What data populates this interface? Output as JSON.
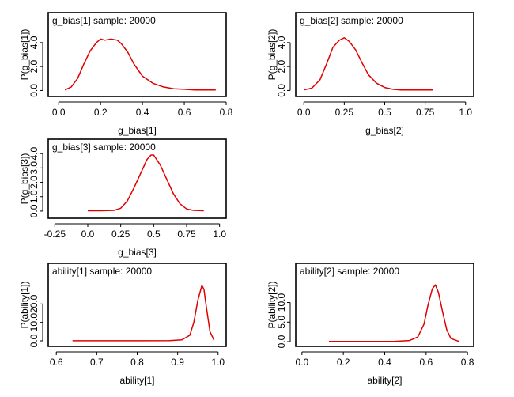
{
  "chart_data": [
    {
      "type": "line",
      "title": "g_bias[1] sample: 20000",
      "xlabel": "g_bias[1]",
      "ylabel": "P(g_bias[1])",
      "xlim": [
        -0.05,
        0.8
      ],
      "ylim": [
        -0.5,
        6.5
      ],
      "xticks": [
        0.0,
        0.2,
        0.4,
        0.6,
        0.8
      ],
      "xtick_labels": [
        "0.0",
        "0.2",
        "0.4",
        "0.6",
        "0.8"
      ],
      "yticks": [
        0,
        2,
        4
      ],
      "ytick_labels": [
        "0.0",
        "2.0",
        "4.0"
      ],
      "series": [
        {
          "x": [
            0.03,
            0.06,
            0.09,
            0.12,
            0.15,
            0.18,
            0.2,
            0.22,
            0.25,
            0.28,
            0.3,
            0.33,
            0.36,
            0.4,
            0.45,
            0.5,
            0.55,
            0.6,
            0.65,
            0.7,
            0.75
          ],
          "y": [
            0.05,
            0.3,
            1.0,
            2.2,
            3.3,
            4.0,
            4.3,
            4.2,
            4.3,
            4.2,
            3.9,
            3.2,
            2.2,
            1.2,
            0.6,
            0.3,
            0.15,
            0.1,
            0.05,
            0.05,
            0.05
          ]
        }
      ]
    },
    {
      "type": "line",
      "title": "g_bias[2] sample: 20000",
      "xlabel": "g_bias[2]",
      "ylabel": "P(g_bias[2])",
      "xlim": [
        -0.05,
        1.05
      ],
      "ylim": [
        -0.5,
        6.5
      ],
      "xticks": [
        0.0,
        0.25,
        0.5,
        0.75,
        1.0
      ],
      "xtick_labels": [
        "0.0",
        "0.25",
        "0.5",
        "0.75",
        "1.0"
      ],
      "yticks": [
        0,
        2,
        4
      ],
      "ytick_labels": [
        "0.0",
        "2.0",
        "4.0"
      ],
      "series": [
        {
          "x": [
            0.0,
            0.05,
            0.1,
            0.14,
            0.18,
            0.22,
            0.25,
            0.28,
            0.32,
            0.36,
            0.4,
            0.45,
            0.5,
            0.55,
            0.6,
            0.7,
            0.8
          ],
          "y": [
            0.05,
            0.2,
            0.9,
            2.2,
            3.6,
            4.2,
            4.4,
            4.1,
            3.4,
            2.3,
            1.3,
            0.6,
            0.25,
            0.1,
            0.05,
            0.05,
            0.05
          ]
        }
      ]
    },
    {
      "type": "line",
      "title": "g_bias[3] sample: 20000",
      "xlabel": "g_bias[3]",
      "ylabel": "P(g_bias[3])",
      "xlim": [
        -0.3,
        1.05
      ],
      "ylim": [
        -0.5,
        5.0
      ],
      "xticks": [
        -0.25,
        0.0,
        0.25,
        0.5,
        0.75,
        1.0
      ],
      "xtick_labels": [
        "-0.25",
        "0.0",
        "0.25",
        "0.5",
        "0.75",
        "1.0"
      ],
      "yticks": [
        0,
        1,
        2,
        3,
        4
      ],
      "ytick_labels": [
        "0.0",
        "1.0",
        "2.0",
        "3.0",
        "4.0"
      ],
      "series": [
        {
          "x": [
            0.0,
            0.1,
            0.2,
            0.25,
            0.3,
            0.35,
            0.4,
            0.45,
            0.48,
            0.5,
            0.55,
            0.6,
            0.65,
            0.7,
            0.75,
            0.8,
            0.88
          ],
          "y": [
            0.02,
            0.02,
            0.05,
            0.2,
            0.7,
            1.6,
            2.6,
            3.6,
            3.9,
            3.9,
            3.2,
            2.2,
            1.2,
            0.5,
            0.15,
            0.05,
            0.02
          ]
        }
      ]
    },
    {
      "type": "line",
      "title": "ability[1] sample: 20000",
      "xlabel": "ability[1]",
      "ylabel": "P(ability[1])",
      "xlim": [
        0.58,
        1.02
      ],
      "ylim": [
        -3,
        42
      ],
      "xticks": [
        0.6,
        0.7,
        0.8,
        0.9,
        1.0
      ],
      "xtick_labels": [
        "0.6",
        "0.7",
        "0.8",
        "0.9",
        "1.0"
      ],
      "yticks": [
        0,
        10,
        20
      ],
      "ytick_labels": [
        "0.0",
        "10.0",
        "20.0"
      ],
      "series": [
        {
          "x": [
            0.64,
            0.7,
            0.8,
            0.88,
            0.91,
            0.93,
            0.94,
            0.95,
            0.96,
            0.965,
            0.97,
            0.98,
            0.99
          ],
          "y": [
            0.05,
            0.05,
            0.05,
            0.1,
            0.5,
            3,
            10,
            22,
            30,
            28,
            20,
            5,
            0.3
          ]
        }
      ]
    },
    {
      "type": "line",
      "title": "ability[2] sample: 20000",
      "xlabel": "ability[2]",
      "ylabel": "P(ability[2])",
      "xlim": [
        -0.03,
        0.83
      ],
      "ylim": [
        -1.2,
        20
      ],
      "xticks": [
        0.0,
        0.2,
        0.4,
        0.6,
        0.8
      ],
      "xtick_labels": [
        "0.0",
        "0.2",
        "0.4",
        "0.6",
        "0.8"
      ],
      "yticks": [
        0,
        5,
        10
      ],
      "ytick_labels": [
        "0.0",
        "5.0",
        "10.0"
      ],
      "series": [
        {
          "x": [
            0.13,
            0.3,
            0.45,
            0.52,
            0.56,
            0.59,
            0.61,
            0.63,
            0.645,
            0.66,
            0.68,
            0.7,
            0.72,
            0.76
          ],
          "y": [
            0.05,
            0.05,
            0.1,
            0.3,
            1.2,
            4.5,
            9.5,
            13.5,
            14.5,
            12.5,
            7.5,
            3,
            0.8,
            0.05
          ]
        }
      ]
    }
  ]
}
